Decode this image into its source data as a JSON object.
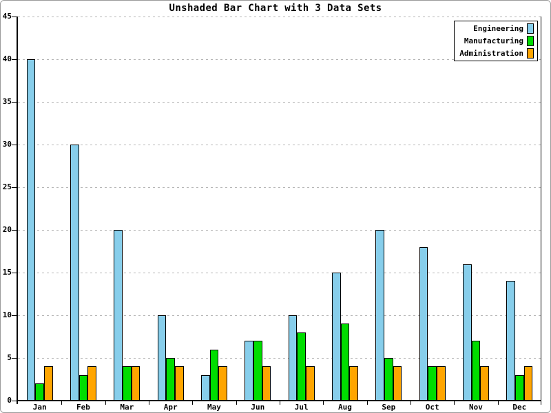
{
  "chart_data": {
    "type": "bar",
    "title": "Unshaded Bar Chart with 3 Data Sets",
    "categories": [
      "Jan",
      "Feb",
      "Mar",
      "Apr",
      "May",
      "Jun",
      "Jul",
      "Aug",
      "Sep",
      "Oct",
      "Nov",
      "Dec"
    ],
    "series": [
      {
        "name": "Engineering",
        "color": "#87CEEB",
        "values": [
          40,
          30,
          20,
          10,
          3,
          7,
          10,
          15,
          20,
          18,
          16,
          14
        ]
      },
      {
        "name": "Manufacturing",
        "color": "#00DD00",
        "values": [
          2,
          3,
          4,
          5,
          6,
          7,
          8,
          9,
          5,
          4,
          7,
          3
        ]
      },
      {
        "name": "Administration",
        "color": "#FFA500",
        "values": [
          4,
          4,
          4,
          4,
          4,
          4,
          4,
          4,
          4,
          4,
          4,
          4
        ]
      }
    ],
    "xlabel": "",
    "ylabel": "",
    "ylim": [
      0,
      45
    ],
    "ytick_interval": 5,
    "ytick_labels": [
      "0",
      "5",
      "10",
      "15",
      "20",
      "25",
      "30",
      "35",
      "40",
      "45"
    ],
    "grid": "horizontal-dotted",
    "legend_position": "top-right",
    "legend_items": [
      "Engineering",
      "Manufacturing",
      "Administration"
    ]
  },
  "colors": {
    "grid": "#b5b5b5",
    "axis": "#000000",
    "background": "#ffffff",
    "frame_border": "#9a9a9a"
  }
}
